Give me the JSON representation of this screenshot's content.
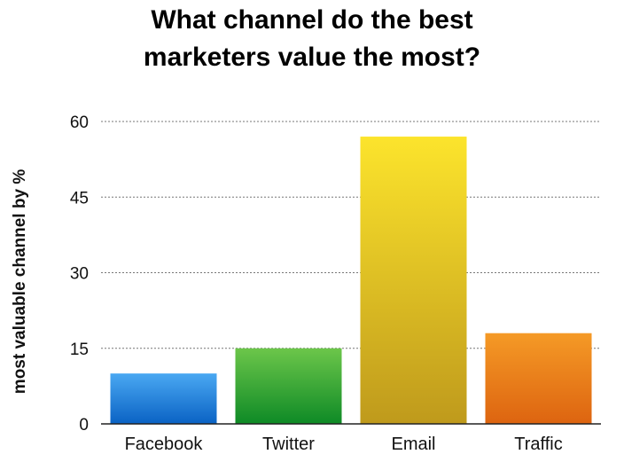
{
  "chart_data": {
    "type": "bar",
    "title_lines": [
      "What channel do the best",
      "marketers value the most?"
    ],
    "ylabel": "most valuable channel by %",
    "xlabel": "",
    "categories": [
      "Facebook",
      "Twitter",
      "Email",
      "Traffic"
    ],
    "values": [
      10,
      15,
      57,
      18
    ],
    "ylim": [
      0,
      60
    ],
    "yticks": [
      0,
      15,
      30,
      45,
      60
    ],
    "grid": true,
    "colors": [
      [
        "#4aa8f2",
        "#0a62c4"
      ],
      [
        "#6cc64a",
        "#0e8a26"
      ],
      [
        "#fce42c",
        "#bf9a1c"
      ],
      [
        "#f59a26",
        "#dd6410"
      ]
    ]
  }
}
